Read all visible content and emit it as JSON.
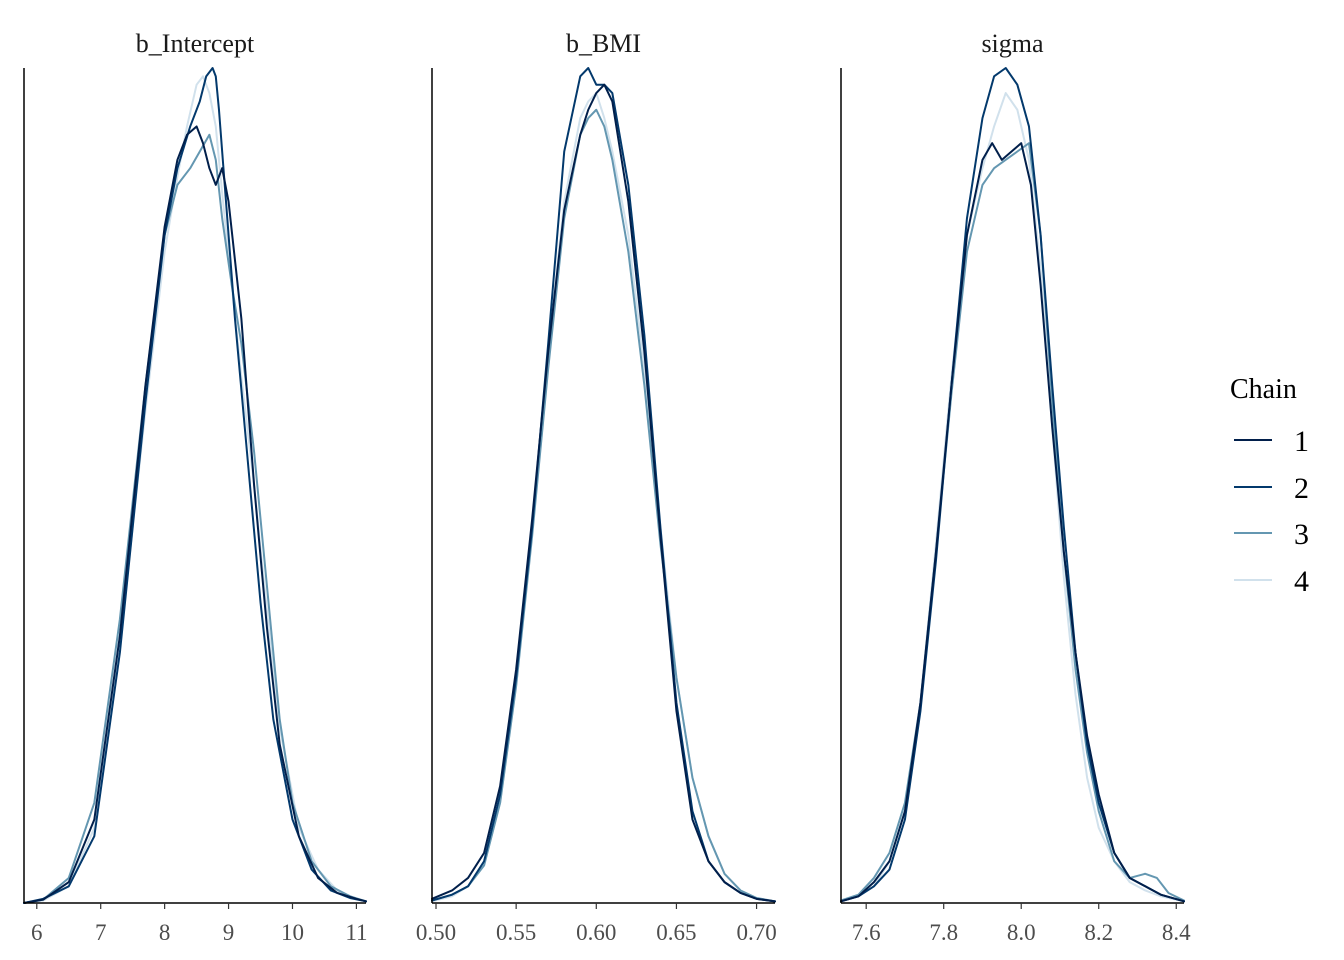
{
  "chart_data": [
    {
      "type": "line",
      "title": "b_Intercept",
      "xlim": [
        5.8,
        11.15
      ],
      "xticks": [
        "6",
        "7",
        "8",
        "9",
        "10",
        "11"
      ],
      "xtick_values": [
        6,
        7,
        8,
        9,
        10,
        11
      ],
      "series": [
        {
          "name": "1",
          "x": [
            5.8,
            6.1,
            6.5,
            6.9,
            7.3,
            7.7,
            8.0,
            8.2,
            8.35,
            8.5,
            8.6,
            8.7,
            8.8,
            8.9,
            9.0,
            9.2,
            9.4,
            9.6,
            9.8,
            10.1,
            10.4,
            10.7,
            11.0,
            11.15
          ],
          "y": [
            0.0,
            0.004,
            0.025,
            0.1,
            0.32,
            0.62,
            0.81,
            0.89,
            0.92,
            0.93,
            0.91,
            0.88,
            0.86,
            0.88,
            0.84,
            0.7,
            0.5,
            0.33,
            0.19,
            0.08,
            0.03,
            0.012,
            0.005,
            0.002
          ]
        },
        {
          "name": "2",
          "x": [
            5.8,
            6.1,
            6.5,
            6.9,
            7.3,
            7.7,
            8.0,
            8.2,
            8.4,
            8.55,
            8.65,
            8.75,
            8.8,
            8.85,
            8.95,
            9.1,
            9.3,
            9.5,
            9.7,
            10.0,
            10.3,
            10.6,
            10.9,
            11.15
          ],
          "y": [
            0.0,
            0.005,
            0.02,
            0.08,
            0.3,
            0.6,
            0.8,
            0.88,
            0.93,
            0.96,
            0.99,
            1.0,
            0.99,
            0.95,
            0.85,
            0.7,
            0.53,
            0.36,
            0.22,
            0.1,
            0.04,
            0.015,
            0.006,
            0.002
          ]
        },
        {
          "name": "3",
          "x": [
            5.8,
            6.1,
            6.5,
            6.9,
            7.3,
            7.7,
            8.0,
            8.2,
            8.4,
            8.55,
            8.7,
            8.8,
            8.9,
            9.05,
            9.2,
            9.4,
            9.6,
            9.8,
            10.0,
            10.3,
            10.6,
            10.9,
            11.15
          ],
          "y": [
            0.0,
            0.004,
            0.03,
            0.12,
            0.34,
            0.62,
            0.8,
            0.86,
            0.88,
            0.9,
            0.92,
            0.89,
            0.82,
            0.74,
            0.67,
            0.54,
            0.38,
            0.22,
            0.12,
            0.05,
            0.02,
            0.008,
            0.002
          ]
        },
        {
          "name": "4",
          "x": [
            5.8,
            6.1,
            6.5,
            6.9,
            7.3,
            7.7,
            8.0,
            8.2,
            8.35,
            8.5,
            8.6,
            8.7,
            8.8,
            8.9,
            9.05,
            9.2,
            9.4,
            9.6,
            9.8,
            10.1,
            10.4,
            10.7,
            11.0,
            11.15
          ],
          "y": [
            0.0,
            0.003,
            0.02,
            0.09,
            0.31,
            0.59,
            0.78,
            0.87,
            0.93,
            0.98,
            0.99,
            0.97,
            0.93,
            0.85,
            0.74,
            0.63,
            0.5,
            0.35,
            0.21,
            0.09,
            0.04,
            0.015,
            0.005,
            0.002
          ]
        }
      ]
    },
    {
      "type": "line",
      "title": "b_BMI",
      "xlim": [
        0.4975,
        0.7115
      ],
      "xticks": [
        "0.50",
        "0.55",
        "0.60",
        "0.65",
        "0.70"
      ],
      "xtick_values": [
        0.5,
        0.55,
        0.6,
        0.65,
        0.7
      ],
      "series": [
        {
          "name": "1",
          "x": [
            0.4975,
            0.51,
            0.52,
            0.53,
            0.54,
            0.55,
            0.56,
            0.57,
            0.58,
            0.59,
            0.595,
            0.6,
            0.605,
            0.61,
            0.62,
            0.63,
            0.64,
            0.65,
            0.66,
            0.67,
            0.68,
            0.69,
            0.7,
            0.7115
          ],
          "y": [
            0.005,
            0.015,
            0.03,
            0.06,
            0.14,
            0.28,
            0.46,
            0.66,
            0.83,
            0.92,
            0.95,
            0.97,
            0.98,
            0.96,
            0.84,
            0.66,
            0.44,
            0.23,
            0.1,
            0.05,
            0.025,
            0.012,
            0.005,
            0.002
          ]
        },
        {
          "name": "2",
          "x": [
            0.4975,
            0.51,
            0.52,
            0.53,
            0.54,
            0.55,
            0.56,
            0.57,
            0.58,
            0.59,
            0.595,
            0.6,
            0.605,
            0.61,
            0.62,
            0.63,
            0.64,
            0.65,
            0.66,
            0.67,
            0.68,
            0.69,
            0.7,
            0.7115
          ],
          "y": [
            0.003,
            0.01,
            0.02,
            0.05,
            0.13,
            0.27,
            0.45,
            0.67,
            0.9,
            0.99,
            1.0,
            0.98,
            0.98,
            0.97,
            0.86,
            0.68,
            0.45,
            0.24,
            0.11,
            0.05,
            0.025,
            0.012,
            0.005,
            0.002
          ]
        },
        {
          "name": "3",
          "x": [
            0.4975,
            0.51,
            0.52,
            0.53,
            0.54,
            0.55,
            0.56,
            0.57,
            0.58,
            0.59,
            0.595,
            0.6,
            0.605,
            0.61,
            0.62,
            0.63,
            0.64,
            0.65,
            0.66,
            0.67,
            0.68,
            0.69,
            0.7,
            0.7115
          ],
          "y": [
            0.003,
            0.01,
            0.02,
            0.045,
            0.12,
            0.26,
            0.44,
            0.64,
            0.82,
            0.92,
            0.94,
            0.95,
            0.93,
            0.89,
            0.78,
            0.62,
            0.43,
            0.27,
            0.15,
            0.08,
            0.035,
            0.015,
            0.006,
            0.002
          ]
        },
        {
          "name": "4",
          "x": [
            0.4975,
            0.51,
            0.52,
            0.53,
            0.54,
            0.55,
            0.56,
            0.57,
            0.58,
            0.59,
            0.595,
            0.6,
            0.605,
            0.61,
            0.62,
            0.63,
            0.64,
            0.65,
            0.66,
            0.67,
            0.68,
            0.69,
            0.7,
            0.7115
          ],
          "y": [
            0.002,
            0.008,
            0.02,
            0.045,
            0.12,
            0.26,
            0.45,
            0.66,
            0.84,
            0.94,
            0.96,
            0.97,
            0.94,
            0.9,
            0.8,
            0.64,
            0.45,
            0.27,
            0.15,
            0.08,
            0.035,
            0.015,
            0.006,
            0.002
          ]
        }
      ]
    },
    {
      "type": "line",
      "title": "sigma",
      "xlim": [
        7.535,
        8.42
      ],
      "xticks": [
        "7.6",
        "7.8",
        "8.0",
        "8.2",
        "8.4"
      ],
      "xtick_values": [
        7.6,
        7.8,
        8.0,
        8.2,
        8.4
      ],
      "series": [
        {
          "name": "1",
          "x": [
            7.535,
            7.58,
            7.62,
            7.66,
            7.7,
            7.74,
            7.78,
            7.82,
            7.86,
            7.9,
            7.925,
            7.95,
            7.975,
            8.0,
            8.025,
            8.05,
            8.08,
            8.11,
            8.14,
            8.17,
            8.2,
            8.24,
            8.28,
            8.32,
            8.36,
            8.42
          ],
          "y": [
            0.002,
            0.008,
            0.025,
            0.05,
            0.11,
            0.24,
            0.42,
            0.62,
            0.8,
            0.89,
            0.91,
            0.89,
            0.9,
            0.91,
            0.86,
            0.74,
            0.57,
            0.42,
            0.3,
            0.2,
            0.13,
            0.06,
            0.03,
            0.02,
            0.01,
            0.002
          ]
        },
        {
          "name": "2",
          "x": [
            7.535,
            7.58,
            7.62,
            7.66,
            7.7,
            7.74,
            7.78,
            7.82,
            7.86,
            7.9,
            7.93,
            7.96,
            7.99,
            8.02,
            8.05,
            8.08,
            8.11,
            8.14,
            8.17,
            8.2,
            8.24,
            8.28,
            8.32,
            8.36,
            8.42
          ],
          "y": [
            0.002,
            0.008,
            0.02,
            0.04,
            0.1,
            0.23,
            0.41,
            0.62,
            0.82,
            0.94,
            0.99,
            1.0,
            0.98,
            0.93,
            0.8,
            0.62,
            0.45,
            0.3,
            0.19,
            0.12,
            0.06,
            0.03,
            0.02,
            0.01,
            0.002
          ]
        },
        {
          "name": "3",
          "x": [
            7.535,
            7.58,
            7.62,
            7.66,
            7.7,
            7.74,
            7.78,
            7.82,
            7.86,
            7.9,
            7.93,
            7.96,
            7.99,
            8.02,
            8.05,
            8.08,
            8.11,
            8.14,
            8.17,
            8.2,
            8.24,
            8.28,
            8.32,
            8.35,
            8.38,
            8.42
          ],
          "y": [
            0.003,
            0.01,
            0.03,
            0.06,
            0.12,
            0.24,
            0.42,
            0.61,
            0.78,
            0.86,
            0.88,
            0.89,
            0.9,
            0.91,
            0.8,
            0.6,
            0.42,
            0.28,
            0.18,
            0.11,
            0.05,
            0.03,
            0.035,
            0.03,
            0.012,
            0.003
          ]
        },
        {
          "name": "4",
          "x": [
            7.535,
            7.58,
            7.62,
            7.66,
            7.7,
            7.74,
            7.78,
            7.82,
            7.86,
            7.9,
            7.93,
            7.96,
            7.99,
            8.02,
            8.05,
            8.08,
            8.11,
            8.14,
            8.17,
            8.2,
            8.24,
            8.28,
            8.32,
            8.36,
            8.42
          ],
          "y": [
            0.002,
            0.008,
            0.02,
            0.05,
            0.11,
            0.24,
            0.43,
            0.63,
            0.8,
            0.88,
            0.93,
            0.97,
            0.95,
            0.89,
            0.76,
            0.57,
            0.39,
            0.25,
            0.15,
            0.09,
            0.05,
            0.025,
            0.015,
            0.008,
            0.002
          ]
        }
      ]
    }
  ],
  "legend": {
    "title": "Chain",
    "placement": "right",
    "entries": [
      "1",
      "2",
      "3",
      "4"
    ]
  },
  "colors": {
    "1": "#011f4b",
    "2": "#03396c",
    "3": "#6497b1",
    "4": "#d1e1ec"
  }
}
